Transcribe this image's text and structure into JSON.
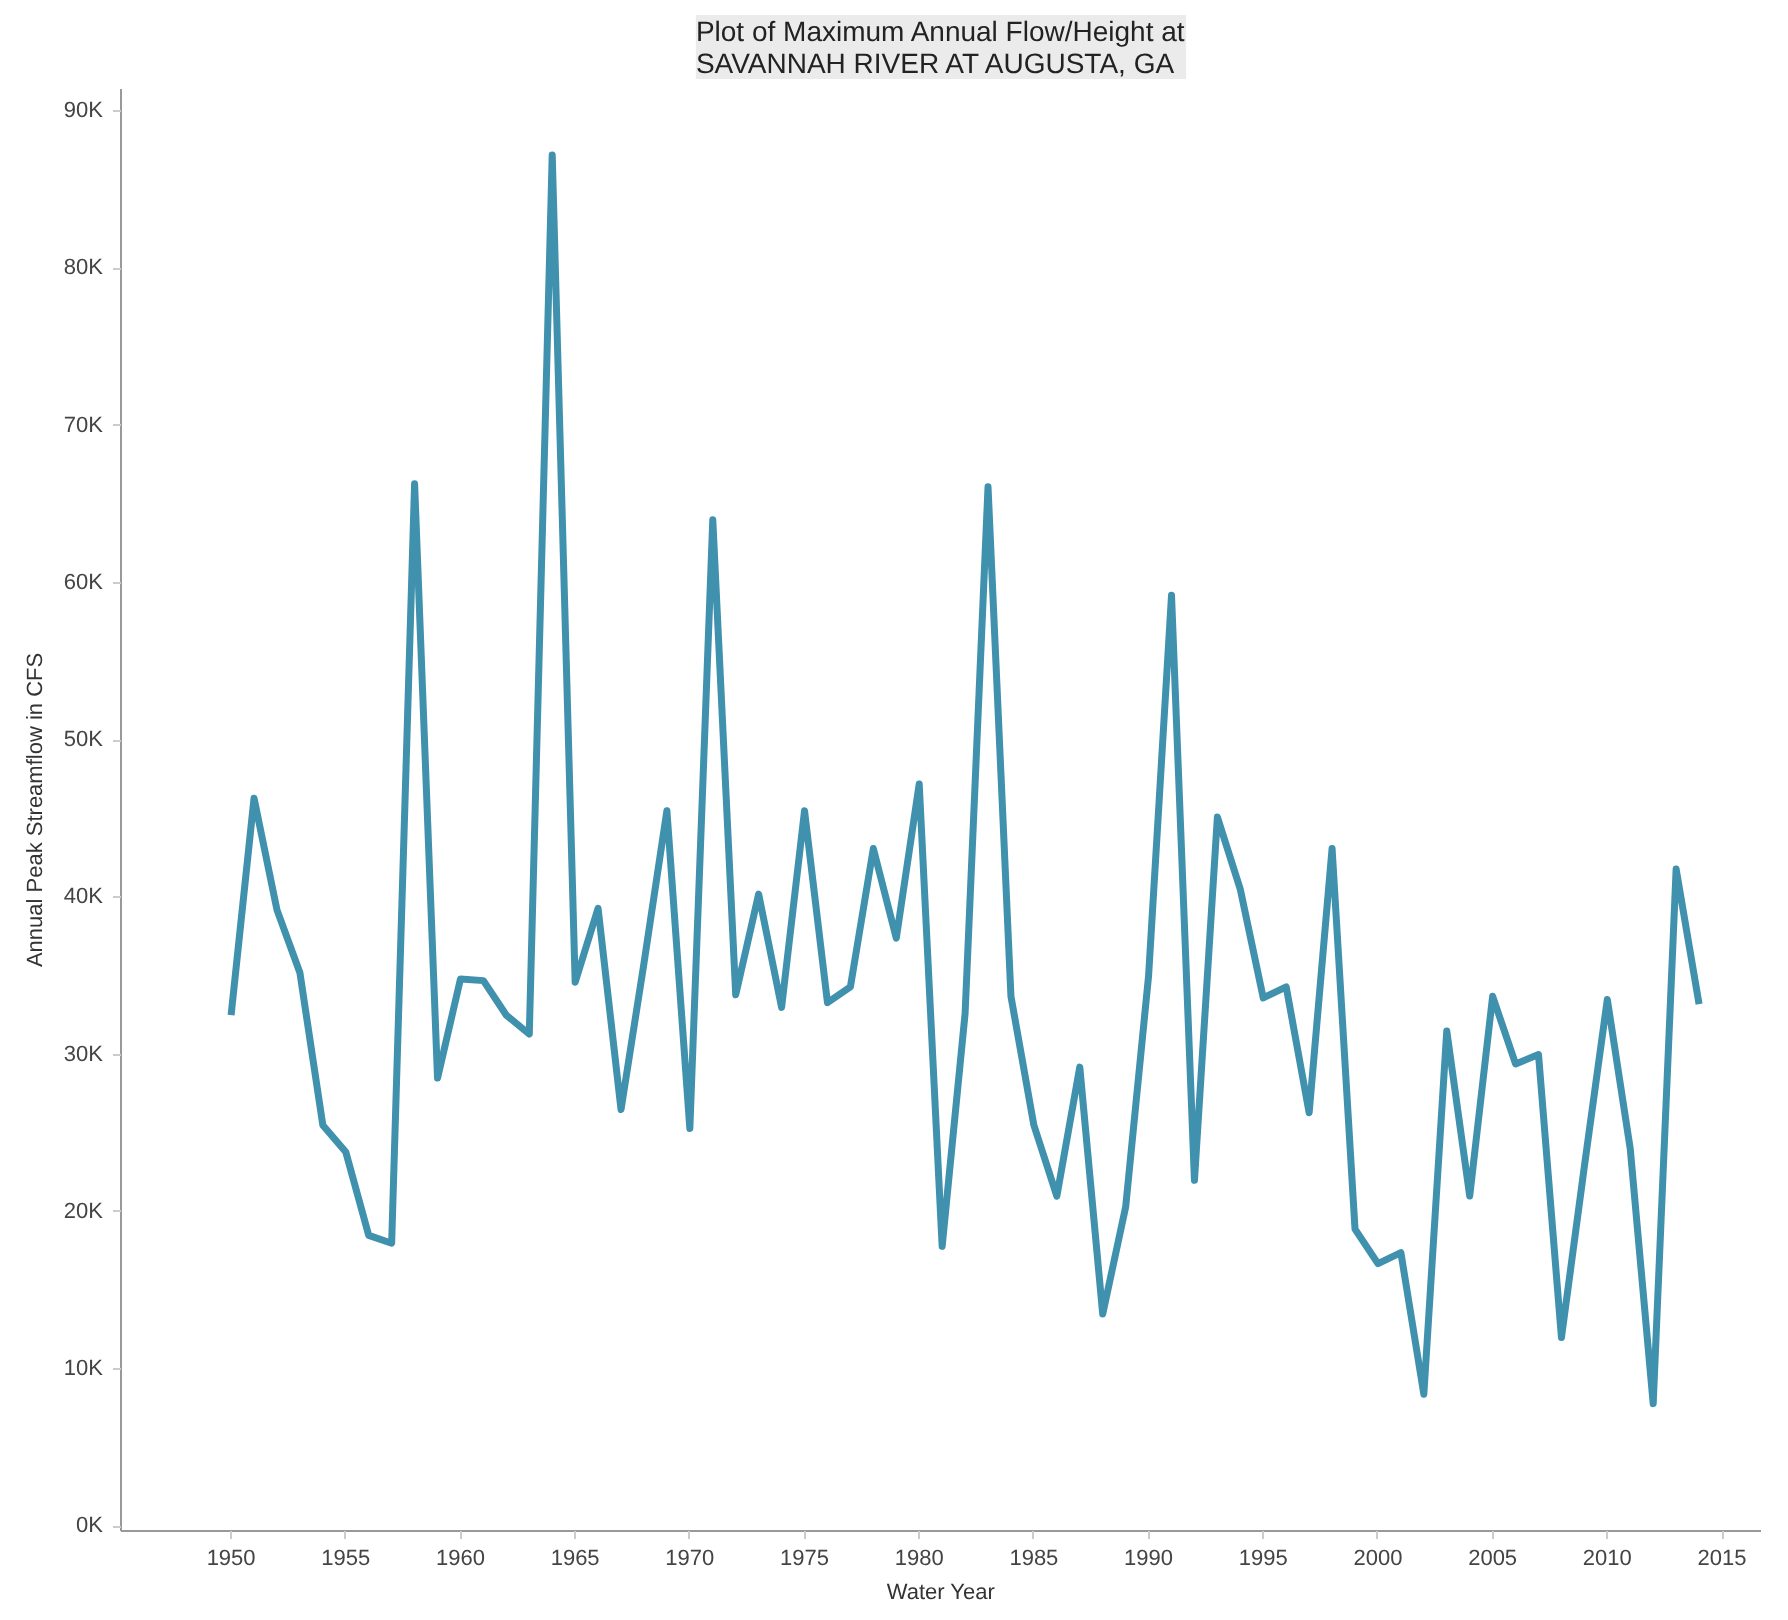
{
  "chart_data": {
    "type": "line",
    "title": "Plot of Maximum Annual Flow/Height at\nSAVANNAH RIVER AT AUGUSTA, GA",
    "xlabel": "Water Year",
    "ylabel": "Annual Peak Streamflow in CFS",
    "x": [
      1950,
      1951,
      1952,
      1953,
      1954,
      1955,
      1956,
      1957,
      1958,
      1959,
      1960,
      1961,
      1962,
      1963,
      1964,
      1965,
      1966,
      1967,
      1968,
      1969,
      1970,
      1971,
      1972,
      1973,
      1974,
      1975,
      1976,
      1977,
      1978,
      1979,
      1980,
      1981,
      1982,
      1983,
      1984,
      1985,
      1986,
      1987,
      1988,
      1989,
      1990,
      1991,
      1992,
      1993,
      1994,
      1995,
      1996,
      1997,
      1998,
      1999,
      2000,
      2001,
      2002,
      2003,
      2004,
      2005,
      2006,
      2007,
      2008,
      2009,
      2010,
      2011,
      2012,
      2013,
      2014
    ],
    "series": [
      {
        "color": "#3f91ad",
        "values": [
          32500,
          46300,
          39200,
          35200,
          25500,
          23800,
          18500,
          18000,
          66300,
          28500,
          34800,
          34700,
          32500,
          31300,
          87200,
          34600,
          39300,
          26500,
          35800,
          45500,
          25300,
          64000,
          33800,
          40200,
          33000,
          45500,
          33300,
          34300,
          43100,
          37400,
          47200,
          17800,
          32600,
          66100,
          33700,
          25500,
          21000,
          29200,
          13500,
          20300,
          35000,
          59200,
          22000,
          45100,
          40500,
          33600,
          34300,
          26300,
          43100,
          18900,
          16700,
          17400,
          8400,
          31500,
          21000,
          33700,
          29400,
          30000,
          12000,
          22900,
          33500,
          24000,
          7800,
          41800,
          33200
        ]
      }
    ],
    "xlim": [
      1945.2,
      2016.7
    ],
    "xticks": [
      1950,
      1955,
      1960,
      1965,
      1970,
      1975,
      1980,
      1985,
      1990,
      1995,
      2000,
      2005,
      2010,
      2015
    ],
    "ylim": [
      -300,
      91400
    ],
    "yticks": [
      {
        "value": 0,
        "label": "0K"
      },
      {
        "value": 10000,
        "label": "10K"
      },
      {
        "value": 20000,
        "label": "20K"
      },
      {
        "value": 30000,
        "label": "30K"
      },
      {
        "value": 40000,
        "label": "40K"
      },
      {
        "value": 50000,
        "label": "50K"
      },
      {
        "value": 60000,
        "label": "60K"
      },
      {
        "value": 70000,
        "label": "70K"
      },
      {
        "value": 80000,
        "label": "80K"
      },
      {
        "value": 90000,
        "label": "90K"
      }
    ],
    "grid": false,
    "line_style": "solid"
  }
}
